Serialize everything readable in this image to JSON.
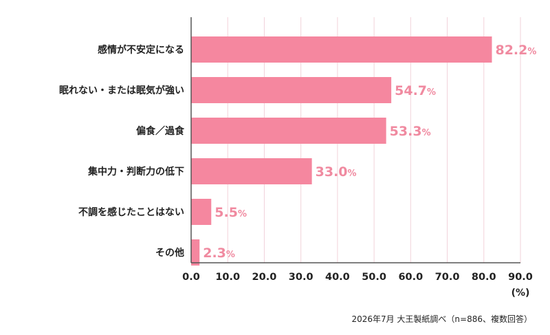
{
  "chart_data": {
    "type": "bar",
    "orientation": "horizontal",
    "categories": [
      "感情が不安定になる",
      "眠れない・または眠気が強い",
      "偏食／過食",
      "集中力・判断力の低下",
      "不調を感じたことはない",
      "その他"
    ],
    "values": [
      82.2,
      54.7,
      53.3,
      33.0,
      5.5,
      2.3
    ],
    "value_labels": [
      "82.2",
      "54.7",
      "53.3",
      "33.0",
      "5.5",
      "2.3"
    ],
    "value_suffix": "%",
    "xticks": [
      "0.0",
      "10.0",
      "20.0",
      "30.0",
      "40.0",
      "50.0",
      "60.0",
      "70.0",
      "80.0",
      "90.0"
    ],
    "xlim": [
      0,
      90
    ],
    "x_unit": "(%)",
    "grid": true,
    "bar_color": "#f5879f",
    "label_color": "#f08aa0",
    "grid_color": "#f2d2da"
  },
  "source_note": "2026年7月 大王製紙調べ（n=886、複数回答）"
}
